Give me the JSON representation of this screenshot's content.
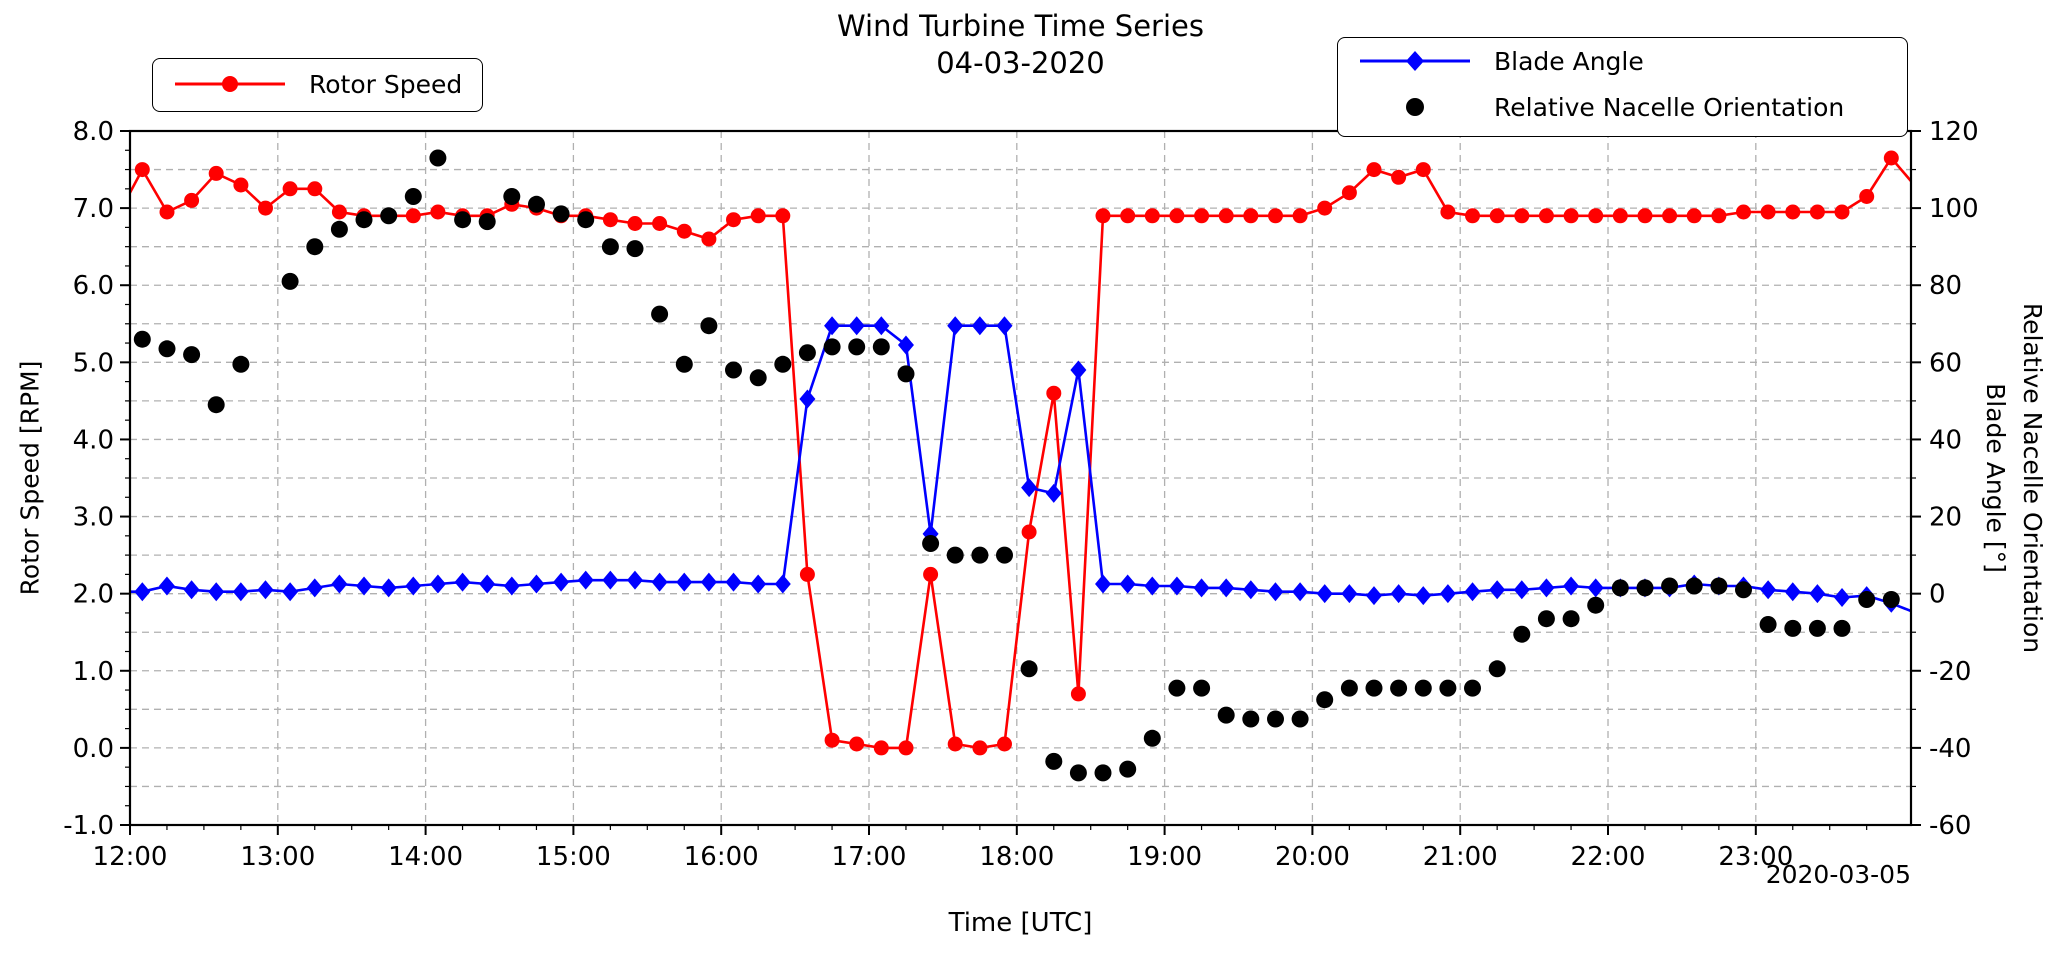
{
  "chart_data": {
    "type": "line",
    "title": "Wind Turbine Time Series",
    "subtitle": "04-03-2020",
    "xlabel": "Time [UTC]",
    "ylabel_left": "Rotor Speed [RPM]",
    "ylabel_right_line1": "Relative Nacelle Orientation",
    "ylabel_right_line2": "Blade Angle [°]",
    "x_end_date": "2020-03-05",
    "x_ticks": [
      "12:00",
      "13:00",
      "14:00",
      "15:00",
      "16:00",
      "17:00",
      "18:00",
      "19:00",
      "20:00",
      "21:00",
      "22:00",
      "23:00"
    ],
    "y_ticks_left": [
      8.0,
      7.0,
      6.0,
      5.0,
      4.0,
      3.0,
      2.0,
      1.0,
      0.0,
      -1.0
    ],
    "y_ticks_right": [
      120,
      100,
      80,
      60,
      40,
      20,
      0,
      -20,
      -40,
      -60
    ],
    "ylim_left": [
      -1.0,
      8.0
    ],
    "ylim_right": [
      -60,
      120
    ],
    "x_domain_hours": [
      12.0,
      24.05
    ],
    "grid": "dashed gray, horizontal every 0.5 RPM (10°), vertical every hour",
    "legend_left_position": "upper left",
    "legend_right_position": "upper right",
    "times": [
      "12:05",
      "12:15",
      "12:25",
      "12:35",
      "12:45",
      "12:55",
      "13:05",
      "13:15",
      "13:25",
      "13:35",
      "13:45",
      "13:55",
      "14:05",
      "14:15",
      "14:25",
      "14:35",
      "14:45",
      "14:55",
      "15:05",
      "15:15",
      "15:25",
      "15:35",
      "15:45",
      "15:55",
      "16:05",
      "16:15",
      "16:25",
      "16:35",
      "16:45",
      "16:55",
      "17:05",
      "17:15",
      "17:25",
      "17:35",
      "17:45",
      "17:55",
      "18:05",
      "18:15",
      "18:25",
      "18:35",
      "18:45",
      "18:55",
      "19:05",
      "19:15",
      "19:25",
      "19:35",
      "19:45",
      "19:55",
      "20:05",
      "20:15",
      "20:25",
      "20:35",
      "20:45",
      "20:55",
      "21:05",
      "21:15",
      "21:25",
      "21:35",
      "21:45",
      "21:55",
      "22:05",
      "22:15",
      "22:25",
      "22:35",
      "22:45",
      "22:55",
      "23:05",
      "23:15",
      "23:25",
      "23:35",
      "23:45",
      "23:55"
    ],
    "series": [
      {
        "name": "Rotor Speed",
        "axis": "left",
        "unit": "RPM",
        "color": "#ff0000",
        "marker": "circle",
        "line": true,
        "values": [
          7.5,
          6.95,
          7.1,
          7.45,
          7.3,
          7.0,
          7.25,
          7.25,
          6.95,
          6.9,
          6.9,
          6.9,
          6.95,
          6.9,
          6.9,
          7.05,
          7.0,
          6.9,
          6.9,
          6.85,
          6.8,
          6.8,
          6.7,
          6.6,
          6.85,
          6.9,
          6.9,
          2.25,
          0.1,
          0.05,
          0.0,
          0.0,
          2.25,
          0.05,
          0.0,
          0.05,
          2.8,
          4.6,
          0.7,
          6.9,
          6.9,
          6.9,
          6.9,
          6.9,
          6.9,
          6.9,
          6.9,
          6.9,
          7.0,
          7.2,
          7.5,
          7.4,
          7.5,
          6.95,
          6.9,
          6.9,
          6.9,
          6.9,
          6.9,
          6.9,
          6.9,
          6.9,
          6.9,
          6.9,
          6.9,
          6.95,
          6.95,
          6.95,
          6.95,
          6.95,
          7.15,
          7.65
        ]
      },
      {
        "name": "Blade Angle",
        "axis": "right",
        "unit": "deg",
        "color": "#0000ff",
        "marker": "diamond",
        "line": true,
        "values": [
          0.5,
          2.0,
          1.0,
          0.5,
          0.5,
          1.0,
          0.5,
          1.5,
          2.5,
          2.0,
          1.5,
          2.0,
          2.5,
          3.0,
          2.5,
          2.0,
          2.5,
          3.0,
          3.5,
          3.5,
          3.5,
          3.0,
          3.0,
          3.0,
          3.0,
          2.5,
          2.5,
          50.5,
          69.5,
          69.5,
          69.5,
          64.5,
          15.5,
          69.5,
          69.5,
          69.5,
          27.5,
          26.0,
          58.0,
          2.5,
          2.5,
          2.0,
          2.0,
          1.5,
          1.5,
          1.0,
          0.5,
          0.5,
          0.0,
          0.0,
          -0.5,
          0.0,
          -0.5,
          0.0,
          0.5,
          1.0,
          1.0,
          1.5,
          2.0,
          1.5,
          1.5,
          1.5,
          1.5,
          2.5,
          2.0,
          2.0,
          1.0,
          0.5,
          0.0,
          -1.0,
          -0.5,
          -2.5
        ]
      },
      {
        "name": "Relative Nacelle Orientation",
        "axis": "right",
        "unit": "deg",
        "color": "#000000",
        "marker": "circle",
        "line": false,
        "values": [
          66,
          63.5,
          62,
          49,
          59.5,
          null,
          81,
          90,
          94.5,
          97,
          98,
          103,
          113,
          97,
          96.5,
          103,
          101,
          98.5,
          97,
          90,
          89.5,
          72.5,
          59.5,
          69.5,
          58,
          56,
          59.5,
          62.5,
          64,
          64,
          64,
          57,
          13,
          10,
          10,
          10,
          -19.5,
          -43.5,
          -46.5,
          -46.5,
          -45.5,
          -37.5,
          -24.5,
          -24.5,
          -31.5,
          -32.5,
          -32.5,
          -32.5,
          -27.5,
          -24.5,
          -24.5,
          -24.5,
          -24.5,
          -24.5,
          -24.5,
          -19.5,
          -10.5,
          -6.5,
          -6.5,
          -3,
          1.5,
          1.5,
          2,
          2,
          2,
          1,
          -8,
          -9,
          -9,
          -9,
          -1.5,
          -1.5
        ]
      }
    ],
    "edge_points": {
      "rotor_speed": {
        "start_hour": 12.0,
        "start_value": 7.2,
        "end_hour": 24.05,
        "end_value": 7.35
      },
      "blade_angle": {
        "start_hour": 12.0,
        "start_value": 0.5,
        "end_hour": 24.05,
        "end_value": -4.5
      }
    }
  },
  "legend": {
    "rotor": "Rotor Speed",
    "blade": "Blade Angle",
    "nacelle": "Relative Nacelle Orientation"
  }
}
